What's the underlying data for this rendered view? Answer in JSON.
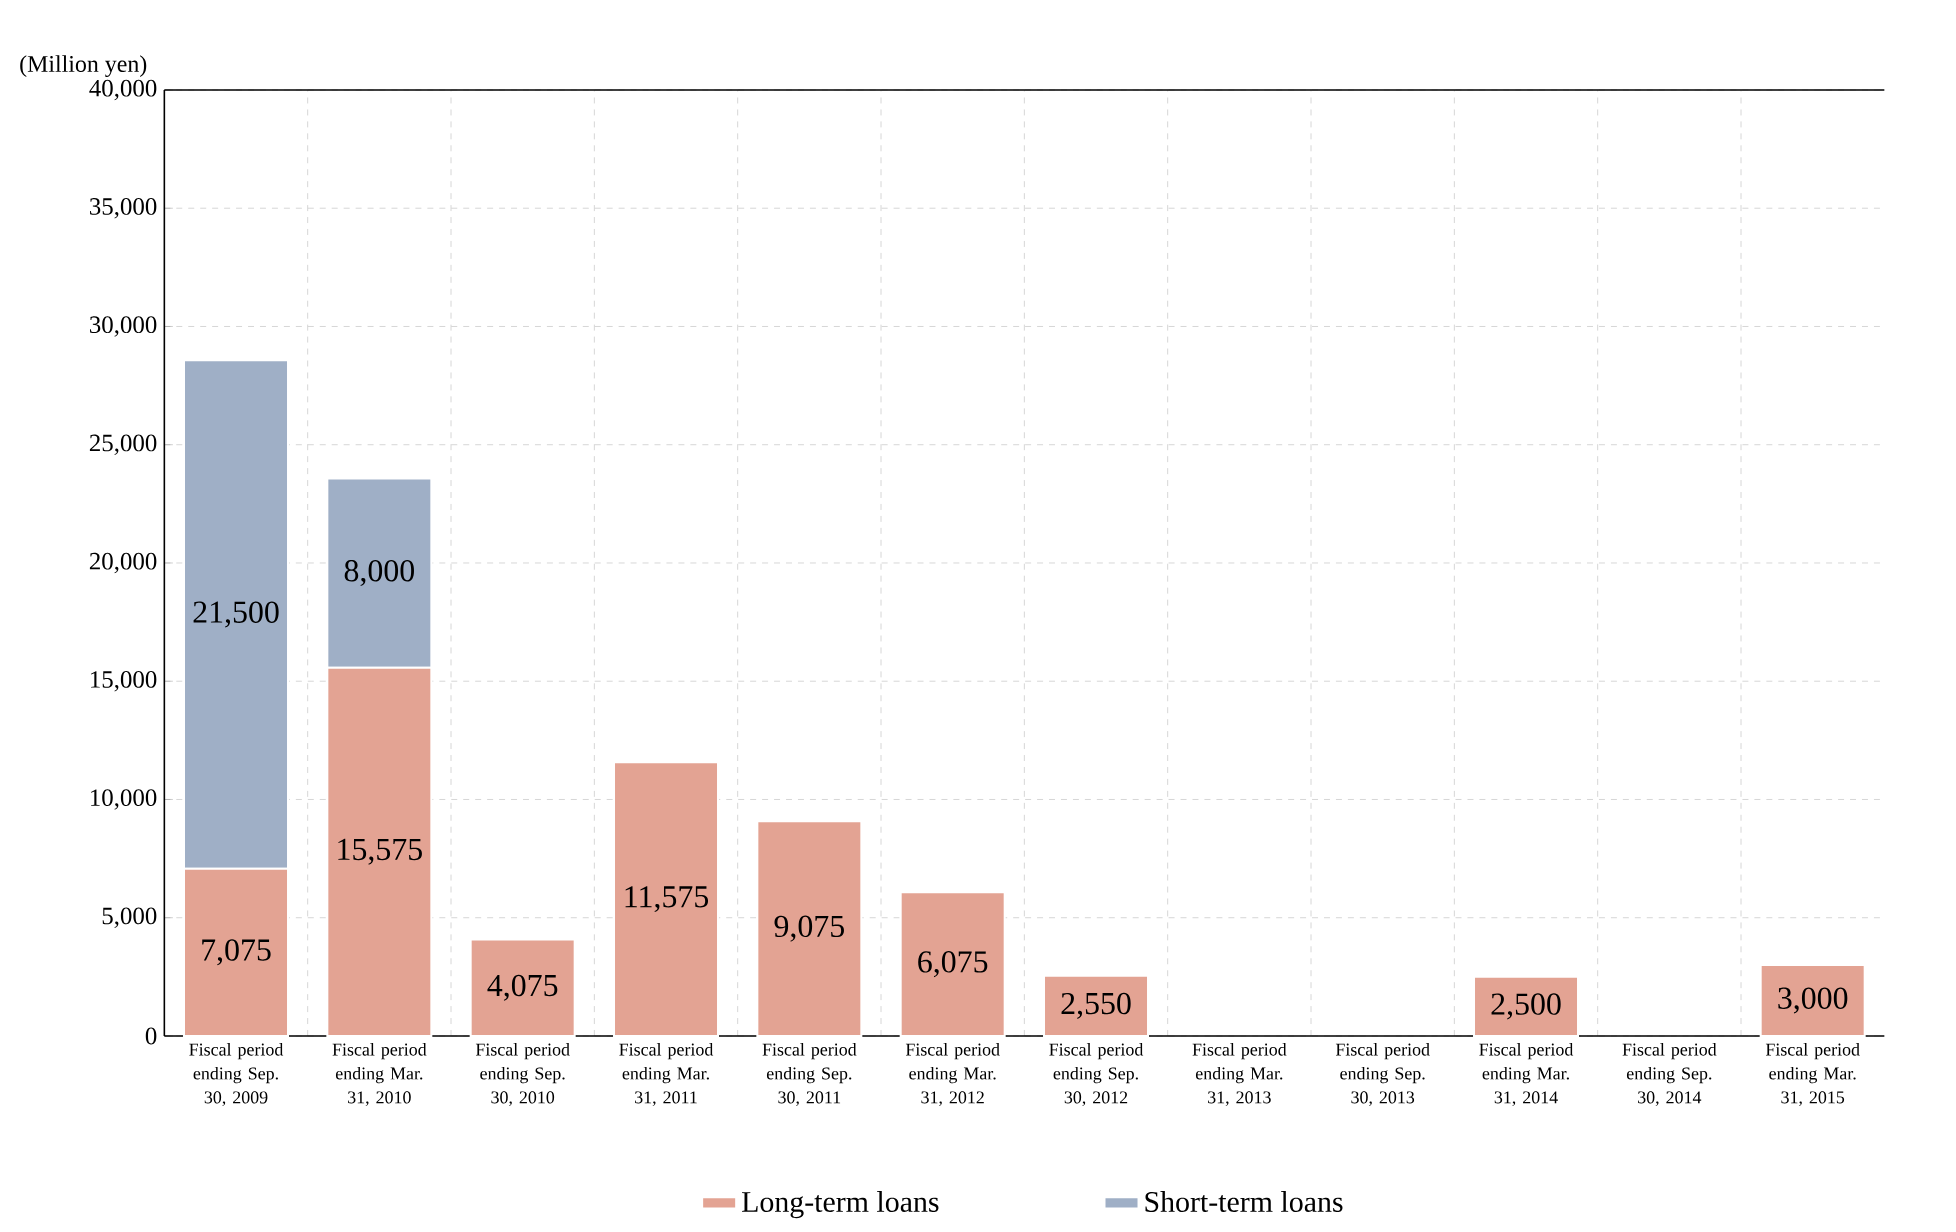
{
  "chart_data": {
    "type": "bar",
    "stacked": true,
    "ylabel": "(Million yen)",
    "categories": [
      "Fiscal period ending Sep. 30, 2009",
      "Fiscal period ending Mar. 31, 2010",
      "Fiscal period ending Sep. 30, 2010",
      "Fiscal period ending Mar. 31, 2011",
      "Fiscal period ending Sep. 30, 2011",
      "Fiscal period ending Mar. 31, 2012",
      "Fiscal period ending Sep. 30, 2012",
      "Fiscal period ending Mar. 31, 2013",
      "Fiscal period ending Sep. 30, 2013",
      "Fiscal period ending Mar. 31, 2014",
      "Fiscal period ending Sep. 30, 2014",
      "Fiscal period ending Mar. 31, 2015"
    ],
    "series": [
      {
        "name": "Long-term loans",
        "color": "#e3a393",
        "values": [
          7075,
          15575,
          4075,
          11575,
          9075,
          6075,
          2550,
          null,
          null,
          2500,
          null,
          3000
        ],
        "value_labels": [
          "7,075",
          "15,575",
          "4,075",
          "11,575",
          "9,075",
          "6,075",
          "2,550",
          null,
          null,
          "2,500",
          null,
          "3,000"
        ]
      },
      {
        "name": "Short-term loans",
        "color": "#9fafc6",
        "values": [
          21500,
          8000,
          null,
          null,
          null,
          null,
          null,
          null,
          null,
          null,
          null,
          null
        ],
        "value_labels": [
          "21,500",
          "8,000",
          null,
          null,
          null,
          null,
          null,
          null,
          null,
          null,
          null,
          null
        ]
      }
    ],
    "ylim": [
      0,
      40000
    ],
    "yticks": [
      0,
      {
        "value": 5000,
        "label": "5,000"
      },
      {
        "value": 10000,
        "label": "10,000"
      },
      {
        "value": 15000,
        "label": "15,000"
      },
      {
        "value": 20000,
        "label": "20,000"
      },
      {
        "value": 25000,
        "label": "25,000"
      },
      {
        "value": 30000,
        "label": "30,000"
      },
      {
        "value": 35000,
        "label": "35,000"
      },
      {
        "value": 40000,
        "label": "40,000"
      }
    ],
    "grid": true,
    "legend": "bottom"
  }
}
